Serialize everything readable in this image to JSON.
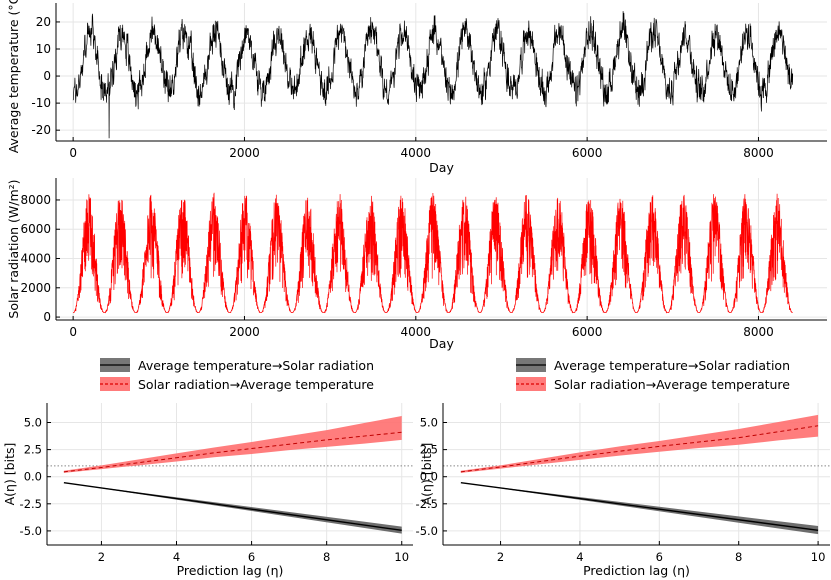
{
  "chart_data": [
    {
      "id": "temp",
      "type": "line",
      "title": "",
      "xlabel": "Day",
      "ylabel": "Average temperature (°C)",
      "xlim": [
        -200,
        8800
      ],
      "ylim": [
        -24,
        27
      ],
      "xticks": [
        0,
        2000,
        4000,
        6000,
        8000
      ],
      "xtick_labels": [
        "0",
        "2000",
        "4000",
        "6000",
        "8000"
      ],
      "yticks": [
        -20,
        -10,
        0,
        10,
        20
      ],
      "ytick_labels": [
        "-20",
        "-10",
        "0",
        "10",
        "20"
      ],
      "grid": true,
      "series": [
        {
          "name": "Average temperature",
          "color": "#000000",
          "x_range": [
            0,
            8400
          ],
          "period_days": 365.25,
          "mean": 5,
          "amplitude": 11,
          "noise": 4,
          "extremes": [
            [
              420,
              -23
            ],
            [
              6420,
              24
            ]
          ]
        }
      ]
    },
    {
      "id": "solar",
      "type": "line",
      "title": "",
      "xlabel": "Day",
      "ylabel": "Solar radiation (W/m²)",
      "xlim": [
        -200,
        8800
      ],
      "ylim": [
        -200,
        9500
      ],
      "xticks": [
        0,
        2000,
        4000,
        6000,
        8000
      ],
      "xtick_labels": [
        "0",
        "2000",
        "4000",
        "6000",
        "8000"
      ],
      "yticks": [
        0,
        2000,
        4000,
        6000,
        8000
      ],
      "ytick_labels": [
        "0",
        "2000",
        "4000",
        "6000",
        "8000"
      ],
      "grid": true,
      "series": [
        {
          "name": "Solar radiation",
          "color": "#ff0000",
          "x_range": [
            0,
            8400
          ],
          "period_days": 365.25,
          "min": 300,
          "peak_max": 8500
        }
      ]
    },
    {
      "id": "lag_left",
      "type": "line",
      "title": "",
      "xlabel": "Prediction lag (η)",
      "ylabel": "A(η) [bits]",
      "xlim": [
        0.55,
        10.3
      ],
      "ylim": [
        -6.3,
        6.8
      ],
      "xticks": [
        2,
        4,
        6,
        8,
        10
      ],
      "xtick_labels": [
        "2",
        "4",
        "6",
        "8",
        "10"
      ],
      "yticks": [
        -5,
        -2.5,
        0,
        2.5,
        5
      ],
      "ytick_labels": [
        "-5.0",
        "-2.5",
        "0.0",
        "2.5",
        "5.0"
      ],
      "grid": true,
      "legend_position": "top",
      "reference_line": 1.0,
      "series": [
        {
          "name": "Average temperature→Solar radiation",
          "color": "#555555",
          "x": [
            1,
            10
          ],
          "y": [
            -0.55,
            -4.95
          ],
          "band_low": [
            -0.55,
            -5.25
          ],
          "band_high": [
            -0.55,
            -4.6
          ]
        },
        {
          "name": "Solar radiation→Average temperature",
          "color": "#ff6f6f",
          "x": [
            1,
            2,
            3,
            4,
            5,
            6,
            7,
            8,
            9,
            10
          ],
          "y": [
            0.45,
            0.85,
            1.3,
            1.75,
            2.2,
            2.6,
            3.0,
            3.4,
            3.75,
            4.1
          ],
          "band_low": [
            0.35,
            0.7,
            1.05,
            1.4,
            1.8,
            2.1,
            2.45,
            2.75,
            3.05,
            3.4
          ],
          "band_high": [
            0.55,
            1.05,
            1.6,
            2.15,
            2.7,
            3.2,
            3.75,
            4.3,
            4.95,
            5.6
          ]
        }
      ]
    },
    {
      "id": "lag_right",
      "type": "line",
      "title": "",
      "xlabel": "Prediction lag (η)",
      "ylabel": "A(η) [bits]",
      "xlim": [
        0.55,
        10.3
      ],
      "ylim": [
        -6.3,
        6.8
      ],
      "xticks": [
        2,
        4,
        6,
        8,
        10
      ],
      "xtick_labels": [
        "2",
        "4",
        "6",
        "8",
        "10"
      ],
      "yticks": [
        -5,
        -2.5,
        0,
        2.5,
        5
      ],
      "ytick_labels": [
        "-5.0",
        "-2.5",
        "0.0",
        "2.5",
        "5.0"
      ],
      "grid": true,
      "legend_position": "top",
      "reference_line": 1.0,
      "series": [
        {
          "name": "Average temperature→Solar radiation",
          "color": "#555555",
          "x": [
            1,
            10
          ],
          "y": [
            -0.55,
            -4.95
          ],
          "band_low": [
            -0.55,
            -5.3
          ],
          "band_high": [
            -0.55,
            -4.55
          ]
        },
        {
          "name": "Solar radiation→Average temperature",
          "color": "#ff6f6f",
          "x": [
            1,
            2,
            3,
            4,
            5,
            6,
            7,
            8,
            9,
            10
          ],
          "y": [
            0.45,
            0.9,
            1.4,
            1.9,
            2.35,
            2.8,
            3.2,
            3.6,
            4.15,
            4.7
          ],
          "band_low": [
            0.35,
            0.75,
            1.15,
            1.55,
            1.95,
            2.3,
            2.65,
            2.95,
            3.35,
            3.7
          ],
          "band_high": [
            0.55,
            1.05,
            1.65,
            2.25,
            2.8,
            3.3,
            3.85,
            4.4,
            5.05,
            5.7
          ]
        }
      ]
    }
  ]
}
